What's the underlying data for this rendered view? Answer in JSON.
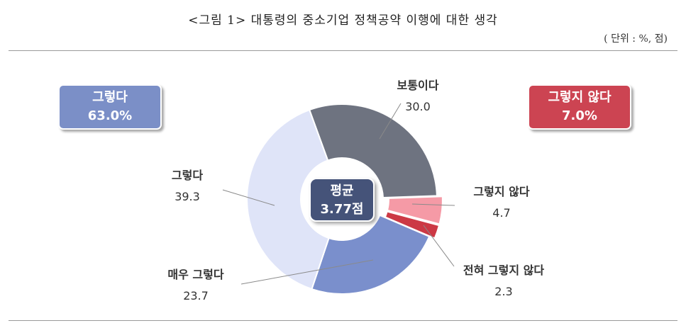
{
  "title": "<그림 1> 대통령의 중소기업 정책공약 이행에 대한 생각",
  "unit_note": "( 단위 : %,  점)",
  "summary": {
    "agree": {
      "label": "그렇다",
      "value": "63.0%",
      "color": "#7b8fc7"
    },
    "disagree": {
      "label": "그렇지 않다",
      "value": "7.0%",
      "color": "#cc4452"
    }
  },
  "center": {
    "label": "평균",
    "value": "3.77점",
    "color": "#455279"
  },
  "chart_data": {
    "type": "pie",
    "categories": [
      "보통이다",
      "그렇지 않다",
      "전혀 그렇지 않다",
      "매우 그렇다",
      "그렇다"
    ],
    "values": [
      30.0,
      4.7,
      2.3,
      23.7,
      39.3
    ],
    "colors": [
      "#6e7380",
      "#f59aa6",
      "#cc3945",
      "#7a8fcc",
      "#dfe4f8"
    ],
    "labels": [
      "30.0",
      "4.7",
      "2.3",
      "23.7",
      "39.3"
    ]
  }
}
